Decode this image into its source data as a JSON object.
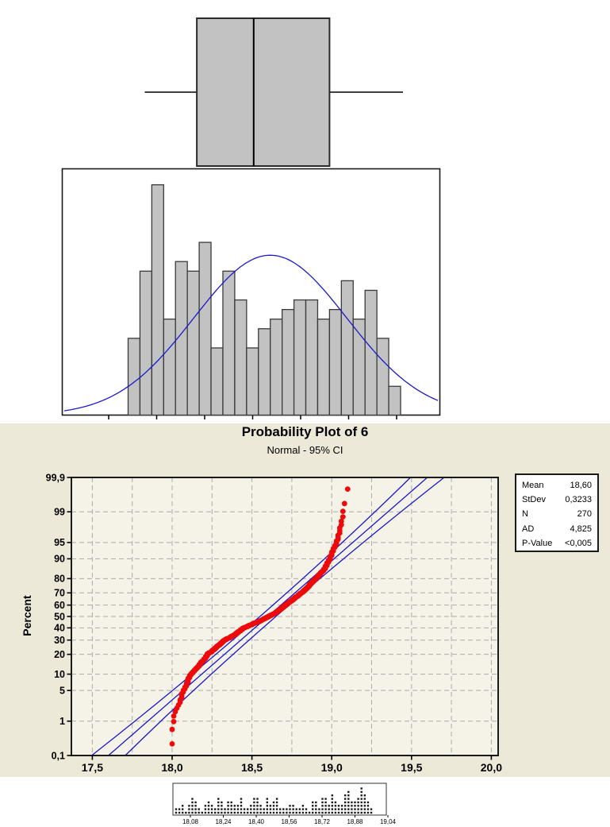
{
  "colors": {
    "background": "#FFFFFF",
    "panel_beige": "#ECE9D8",
    "plot_fill": "#F5F3E7",
    "grid": "#ABABAB",
    "bar_fill": "#C2C2C2",
    "bar_stroke": "#3A3A3A",
    "line_blue": "#1A1ACC",
    "point_red": "#EC0A0A",
    "frame": "#1A1A1A",
    "dot_black": "#1A1A1A"
  },
  "prob_plot": {
    "title": "Probability Plot of 6",
    "subtitle": "Normal - 95% CI",
    "ylabel": "Percent",
    "stats": [
      {
        "label": "Mean",
        "value": "18,60"
      },
      {
        "label": "StDev",
        "value": "0,3233"
      },
      {
        "label": "N",
        "value": "270"
      },
      {
        "label": "AD",
        "value": "4,825"
      },
      {
        "label": "P-Value",
        "value": "<0,005"
      }
    ]
  },
  "chart_data": [
    {
      "type": "boxplot",
      "orientation": "horizontal",
      "whisker_low": 18.07,
      "q1": 18.29,
      "median": 18.53,
      "q3": 18.85,
      "whisker_high": 19.16
    },
    {
      "type": "histogram",
      "bin_start": 18.0,
      "bin_width": 0.05,
      "counts": [
        8,
        15,
        24,
        10,
        16,
        15,
        18,
        7,
        15,
        12,
        7,
        9,
        10,
        11,
        12,
        12,
        10,
        11,
        14,
        10,
        13,
        8,
        3
      ],
      "overlay": {
        "dist": "normal",
        "mean": 18.6,
        "stdev": 0.3233,
        "n": 270
      }
    },
    {
      "type": "scatter",
      "name": "normal-probability-plot",
      "distribution": "Normal",
      "ci_percent": 95,
      "mean": 18.6,
      "stdev": 0.3233,
      "n": 270,
      "ad": 4.825,
      "p_value": "<0,005",
      "xlabel_ticks": [
        {
          "v": 17.5,
          "label": "17,5"
        },
        {
          "v": 18.0,
          "label": "18,0"
        },
        {
          "v": 18.5,
          "label": "18,5"
        },
        {
          "v": 19.0,
          "label": "19,0"
        },
        {
          "v": 19.5,
          "label": "19,5"
        },
        {
          "v": 20.0,
          "label": "20,0"
        }
      ],
      "ylabel_ticks": [
        {
          "p": 99.9,
          "label": "99,9"
        },
        {
          "p": 99,
          "label": "99"
        },
        {
          "p": 95,
          "label": "95"
        },
        {
          "p": 90,
          "label": "90"
        },
        {
          "p": 80,
          "label": "80"
        },
        {
          "p": 70,
          "label": "70"
        },
        {
          "p": 60,
          "label": "60"
        },
        {
          "p": 50,
          "label": "50"
        },
        {
          "p": 40,
          "label": "40"
        },
        {
          "p": 30,
          "label": "30"
        },
        {
          "p": 20,
          "label": "20"
        },
        {
          "p": 10,
          "label": "10"
        },
        {
          "p": 5,
          "label": "5"
        },
        {
          "p": 1,
          "label": "1"
        },
        {
          "p": 0.1,
          "label": "0,1"
        }
      ],
      "grid_x": [
        17.5,
        17.75,
        18.0,
        18.25,
        18.5,
        18.75,
        19.0,
        19.25,
        19.5,
        19.75,
        20.0
      ],
      "grid_y_percents": [
        99,
        95,
        90,
        80,
        70,
        60,
        50,
        40,
        30,
        20,
        10,
        5,
        1
      ],
      "quantile_anchors": [
        [
          0.26,
          18.0
        ],
        [
          0.7,
          18.0
        ],
        [
          1.1,
          18.01
        ],
        [
          1.6,
          18.02
        ],
        [
          2.2,
          18.03
        ],
        [
          3.0,
          18.05
        ],
        [
          4.0,
          18.06
        ],
        [
          5.0,
          18.07
        ],
        [
          6.5,
          18.09
        ],
        [
          8.0,
          18.1
        ],
        [
          10,
          18.12
        ],
        [
          13,
          18.16
        ],
        [
          16,
          18.19
        ],
        [
          18,
          18.21
        ],
        [
          20,
          18.22
        ],
        [
          22,
          18.25
        ],
        [
          25,
          18.28
        ],
        [
          27,
          18.3
        ],
        [
          30,
          18.33
        ],
        [
          32,
          18.36
        ],
        [
          35,
          18.4
        ],
        [
          37,
          18.42
        ],
        [
          40,
          18.45
        ],
        [
          43,
          18.5
        ],
        [
          46,
          18.55
        ],
        [
          49.5,
          18.6
        ],
        [
          53.5,
          18.65
        ],
        [
          58.5,
          18.7
        ],
        [
          62,
          18.73
        ],
        [
          65,
          18.76
        ],
        [
          68,
          18.79
        ],
        [
          71,
          18.82
        ],
        [
          74,
          18.85
        ],
        [
          77,
          18.87
        ],
        [
          80,
          18.9
        ],
        [
          82,
          18.92
        ],
        [
          84,
          18.94
        ],
        [
          86,
          18.96
        ],
        [
          88,
          18.97
        ],
        [
          90,
          18.99
        ],
        [
          92,
          19.0
        ],
        [
          94,
          19.02
        ],
        [
          96,
          19.04
        ],
        [
          97.5,
          19.05
        ],
        [
          98.3,
          19.06
        ],
        [
          99.0,
          19.07
        ],
        [
          99.4,
          19.08
        ],
        [
          99.63,
          19.1
        ]
      ]
    },
    {
      "type": "dotplot",
      "x_first": 18.0,
      "x_step": 0.0165,
      "columns": [
        2,
        2,
        3,
        1,
        3,
        5,
        4,
        2,
        1,
        3,
        4,
        3,
        2,
        5,
        4,
        2,
        4,
        4,
        3,
        3,
        5,
        2,
        2,
        3,
        5,
        5,
        3,
        2,
        5,
        3,
        4,
        5,
        2,
        2,
        2,
        3,
        3,
        2,
        2,
        3,
        2,
        1,
        4,
        4,
        2,
        5,
        5,
        3,
        6,
        4,
        3,
        3,
        6,
        7,
        4,
        4,
        5,
        8,
        6,
        4,
        2
      ],
      "ticks": [
        {
          "label": "18,08"
        },
        {
          "label": "18,24"
        },
        {
          "label": "18,40"
        },
        {
          "label": "18,56"
        },
        {
          "label": "18,72"
        },
        {
          "label": "18,88"
        },
        {
          "label": "19,04"
        }
      ]
    }
  ]
}
